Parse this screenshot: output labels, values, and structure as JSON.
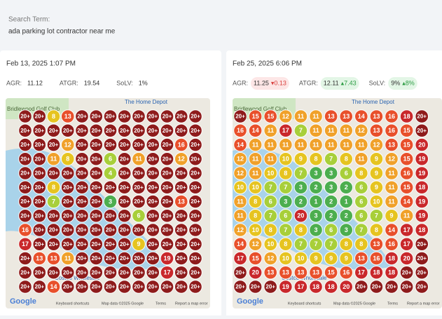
{
  "search": {
    "label": "Search Term:",
    "term": "ada parking lot contractor near me"
  },
  "map_labels": {
    "golf": "Bridlewood Golf Club",
    "depot": "The Home Depot",
    "costco": "Costco Wholesale",
    "google": "Google",
    "keyboard": "Keyboard shortcuts",
    "mapdata": "Map data ©2025 Google",
    "terms": "Terms",
    "report": "Report a map error"
  },
  "cards": [
    {
      "date": "Feb 13, 2025 1:07 PM",
      "metrics": [
        {
          "label": "AGR:",
          "value": "11.12"
        },
        {
          "label": "ATGR:",
          "value": "19.54"
        },
        {
          "label": "SoLV:",
          "value": "1%"
        }
      ],
      "grid": [
        [
          "20+",
          "20+",
          "8",
          "13",
          "20+",
          "20+",
          "20+",
          "20+",
          "20+",
          "20+",
          "20+",
          "20+",
          "20+"
        ],
        [
          "20+",
          "20+",
          "20+",
          "20+",
          "20+",
          "20+",
          "20+",
          "20+",
          "20+",
          "20+",
          "20+",
          "20+",
          "20+"
        ],
        [
          "20+",
          "20+",
          "20+",
          "12",
          "20+",
          "20+",
          "20+",
          "20+",
          "20+",
          "20+",
          "20+",
          "16",
          "20+"
        ],
        [
          "20+",
          "20+",
          "11",
          "8",
          "20+",
          "20+",
          "6",
          "20+",
          "11",
          "20+",
          "20+",
          "12",
          "20+"
        ],
        [
          "20+",
          "20+",
          "20+",
          "20+",
          "20+",
          "20+",
          "4",
          "20+",
          "20+",
          "20+",
          "20+",
          "20+",
          "20+"
        ],
        [
          "20+",
          "20+",
          "8",
          "20+",
          "20+",
          "20+",
          "20+",
          "20+",
          "20+",
          "20+",
          "20+",
          "20+",
          "20+"
        ],
        [
          "20+",
          "20+",
          "7",
          "20+",
          "20+",
          "20+",
          "3",
          "20+",
          "20+",
          "20+",
          "20+",
          "13",
          "20+"
        ],
        [
          "20+",
          "20+",
          "20+",
          "20+",
          "20+",
          "20+",
          "20+",
          "20+",
          "6",
          "20+",
          "20+",
          "20+",
          "20+"
        ],
        [
          "16",
          "20+",
          "20+",
          "20+",
          "20+",
          "20+",
          "20+",
          "20+",
          "20+",
          "20+",
          "20+",
          "20+",
          "20+"
        ],
        [
          "17",
          "20+",
          "20+",
          "20+",
          "20+",
          "20+",
          "20+",
          "20+",
          "9",
          "20+",
          "20+",
          "20+",
          "20+"
        ],
        [
          "20+",
          "13",
          "13",
          "11",
          "20+",
          "20+",
          "20+",
          "20+",
          "20+",
          "20+",
          "19",
          "20+",
          "20+"
        ],
        [
          "20+",
          "20+",
          "20+",
          "20+",
          "20+",
          "20+",
          "20+",
          "20+",
          "20+",
          "20+",
          "17",
          "20+",
          "20+"
        ],
        [
          "20+",
          "20+",
          "14",
          "20+",
          "20+",
          "20+",
          "20+",
          "20+",
          "20+",
          "20+",
          "20+",
          "20+",
          "20+"
        ]
      ]
    },
    {
      "date": "Feb 25, 2025 6:06 PM",
      "metrics": [
        {
          "label": "AGR:",
          "value": "11.25",
          "change": "▾0.13",
          "trend": "down"
        },
        {
          "label": "ATGR:",
          "value": "12.11",
          "change": "▴7.43",
          "trend": "up"
        },
        {
          "label": "SoLV:",
          "value": "9%",
          "change": "▴8%",
          "trend": "up"
        }
      ],
      "grid": [
        [
          "20+",
          "15",
          "15",
          "12",
          "11",
          "11",
          "13",
          "13",
          "14",
          "13",
          "16",
          "18",
          "20+"
        ],
        [
          "16",
          "14",
          "11",
          "17",
          "7",
          "11",
          "11",
          "11",
          "12",
          "13",
          "16",
          "15",
          "20+"
        ],
        [
          "14",
          "11",
          "11",
          "11",
          "11",
          "11",
          "11",
          "11",
          "11",
          "12",
          "13",
          "15",
          "20"
        ],
        [
          "12",
          "11",
          "11",
          "10",
          "9",
          "8",
          "7",
          "8",
          "11",
          "9",
          "12",
          "15",
          "19"
        ],
        [
          "12",
          "11",
          "10",
          "8",
          "7",
          "3",
          "3",
          "6",
          "8",
          "9",
          "11",
          "16",
          "19"
        ],
        [
          "10",
          "10",
          "7",
          "7",
          "3",
          "2",
          "3",
          "2",
          "6",
          "9",
          "11",
          "15",
          "18"
        ],
        [
          "11",
          "8",
          "6",
          "3",
          "2",
          "1",
          "2",
          "1",
          "6",
          "10",
          "11",
          "14",
          "19"
        ],
        [
          "11",
          "8",
          "7",
          "6",
          "20",
          "3",
          "2",
          "2",
          "6",
          "7",
          "9",
          "11",
          "19"
        ],
        [
          "12",
          "10",
          "8",
          "7",
          "8",
          "3",
          "6",
          "3",
          "7",
          "8",
          "14",
          "17",
          "18"
        ],
        [
          "14",
          "12",
          "10",
          "8",
          "7",
          "7",
          "7",
          "8",
          "8",
          "13",
          "16",
          "17",
          "20+"
        ],
        [
          "17",
          "15",
          "12",
          "10",
          "10",
          "9",
          "9",
          "9",
          "13",
          "16",
          "18",
          "20",
          "20+"
        ],
        [
          "20+",
          "20",
          "13",
          "13",
          "13",
          "13",
          "15",
          "16",
          "17",
          "18",
          "18",
          "20+",
          "20+"
        ],
        [
          "20+",
          "20+",
          "20+",
          "19",
          "17",
          "18",
          "18",
          "20",
          "20+",
          "20+",
          "20+",
          "20+",
          "20+"
        ]
      ]
    }
  ]
}
